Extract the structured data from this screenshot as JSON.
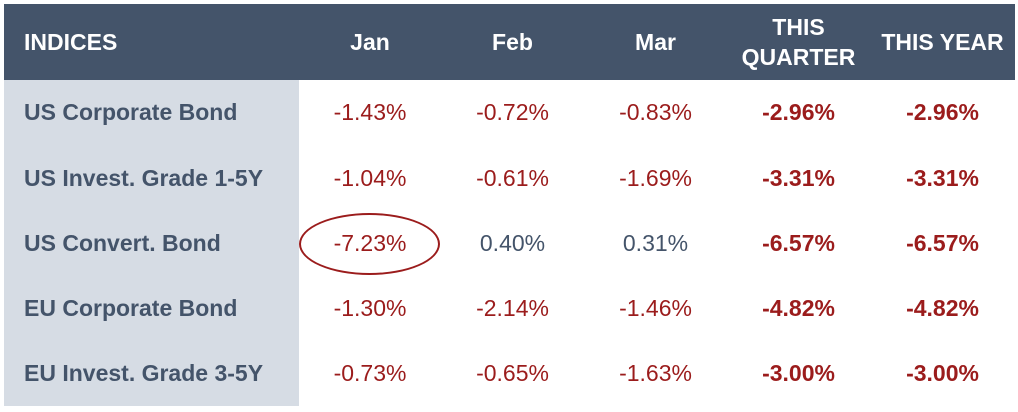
{
  "chart_data": {
    "type": "table",
    "columns": [
      "INDICES",
      "Jan",
      "Feb",
      "Mar",
      "THIS QUARTER",
      "THIS YEAR"
    ],
    "rows": [
      {
        "label": "US Corporate Bond",
        "values": [
          "-1.43%",
          "-0.72%",
          "-0.83%",
          "-2.96%",
          "-2.96%"
        ]
      },
      {
        "label": "US Invest. Grade 1-5Y",
        "values": [
          "-1.04%",
          "-0.61%",
          "-1.69%",
          "-3.31%",
          "-3.31%"
        ]
      },
      {
        "label": "US Convert. Bond",
        "values": [
          "-7.23%",
          "0.40%",
          "0.31%",
          "-6.57%",
          "-6.57%"
        ]
      },
      {
        "label": "EU Corporate Bond",
        "values": [
          "-1.30%",
          "-2.14%",
          "-1.46%",
          "-4.82%",
          "-4.82%"
        ]
      },
      {
        "label": "EU Invest. Grade 3-5Y",
        "values": [
          "-0.73%",
          "-0.65%",
          "-1.63%",
          "-3.00%",
          "-3.00%"
        ]
      }
    ],
    "highlighted_cell": {
      "row": "US Convert. Bond",
      "column": "Jan"
    }
  },
  "colors": {
    "header_bg": "#44546a",
    "label_bg": "#d6dce4",
    "negative": "#9b1c1c",
    "positive": "#44546a",
    "highlight": "#9b1c1c"
  }
}
